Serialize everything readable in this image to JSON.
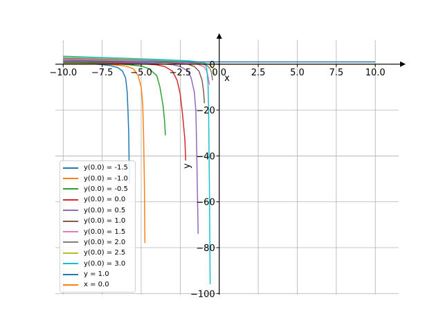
{
  "chart_data": {
    "type": "line",
    "xlabel": "x",
    "ylabel": "y",
    "xlim": [
      -10.5,
      11.5
    ],
    "ylim": [
      -100.5,
      10.5
    ],
    "grid": true,
    "legend_position": "lower-left",
    "x_ticks": [
      -10.0,
      -7.5,
      -5.0,
      -2.5,
      0.0,
      2.5,
      5.0,
      7.5,
      10.0
    ],
    "x_tick_labels": [
      "−10.0",
      "−7.5",
      "−5.0",
      "−2.5",
      "0.0",
      "2.5",
      "5.0",
      "7.5",
      "10.0"
    ],
    "y_ticks": [
      0,
      -20,
      -40,
      -60,
      -80,
      -100
    ],
    "y_tick_labels": [
      "0",
      "−20",
      "−40",
      "−60",
      "−80",
      "−100"
    ],
    "series": [
      {
        "name": "y(0.0) = -1.5",
        "color": "#1f77b4",
        "points": [
          [
            -10,
            0.42
          ],
          [
            -9,
            0.25
          ],
          [
            -8,
            0.05
          ],
          [
            -7.5,
            -0.2
          ],
          [
            -7,
            -0.6
          ],
          [
            -6.5,
            -1.5
          ],
          [
            -6.2,
            -3
          ],
          [
            -6.0,
            -6
          ],
          [
            -5.9,
            -12
          ],
          [
            -5.85,
            -20
          ],
          [
            -5.8,
            -30
          ],
          [
            -5.78,
            -40
          ],
          [
            -5.76,
            -52
          ]
        ]
      },
      {
        "name": "y(0.0) = -1.0",
        "color": "#ff7f0e",
        "points": [
          [
            -10,
            0.55
          ],
          [
            -9,
            0.4
          ],
          [
            -8,
            0.2
          ],
          [
            -7,
            -0.1
          ],
          [
            -6,
            -0.8
          ],
          [
            -5.5,
            -2
          ],
          [
            -5.2,
            -5
          ],
          [
            -5.0,
            -10
          ],
          [
            -4.9,
            -18
          ],
          [
            -4.85,
            -30
          ],
          [
            -4.8,
            -50
          ],
          [
            -4.78,
            -65
          ],
          [
            -4.76,
            -78
          ]
        ]
      },
      {
        "name": "y(0.0) = -0.5",
        "color": "#2ca02c",
        "points": [
          [
            -10,
            0.75
          ],
          [
            -9,
            0.62
          ],
          [
            -8,
            0.45
          ],
          [
            -7,
            0.25
          ],
          [
            -6,
            -0.1
          ],
          [
            -5,
            -0.8
          ],
          [
            -4.5,
            -2
          ],
          [
            -4.0,
            -5
          ],
          [
            -3.8,
            -10
          ],
          [
            -3.6,
            -18
          ],
          [
            -3.5,
            -25
          ],
          [
            -3.45,
            -31
          ]
        ]
      },
      {
        "name": "y(0.0) = 0.0",
        "color": "#d62728",
        "points": [
          [
            -10,
            0.95
          ],
          [
            -9,
            0.88
          ],
          [
            -8,
            0.75
          ],
          [
            -7,
            0.6
          ],
          [
            -6,
            0.42
          ],
          [
            -5,
            0.15
          ],
          [
            -4,
            -0.3
          ],
          [
            -3.5,
            -1
          ],
          [
            -3.0,
            -3
          ],
          [
            -2.7,
            -7
          ],
          [
            -2.5,
            -13
          ],
          [
            -2.35,
            -22
          ],
          [
            -2.2,
            -33
          ],
          [
            -2.15,
            -42
          ]
        ]
      },
      {
        "name": "y(0.0) = 0.5",
        "color": "#9467bd",
        "points": [
          [
            -10,
            1.3
          ],
          [
            -8,
            1.1
          ],
          [
            -6,
            0.8
          ],
          [
            -4,
            0.3
          ],
          [
            -3,
            -0.2
          ],
          [
            -2.5,
            -1
          ],
          [
            -2.0,
            -3
          ],
          [
            -1.8,
            -6
          ],
          [
            -1.6,
            -12
          ],
          [
            -1.5,
            -20
          ],
          [
            -1.45,
            -35
          ],
          [
            -1.4,
            -55
          ],
          [
            -1.35,
            -74
          ]
        ]
      },
      {
        "name": "y(0.0) = 1.0",
        "color": "#8c564b",
        "points": [
          [
            -10,
            1.8
          ],
          [
            -8,
            1.5
          ],
          [
            -6,
            1.2
          ],
          [
            -4,
            0.8
          ],
          [
            -3,
            0.5
          ],
          [
            -2,
            0
          ],
          [
            -1.6,
            -1
          ],
          [
            -1.3,
            -3
          ],
          [
            -1.1,
            -7
          ],
          [
            -1.0,
            -12
          ],
          [
            -0.95,
            -17
          ]
        ]
      },
      {
        "name": "y(0.0) = 1.5",
        "color": "#e377c2",
        "points": [
          [
            -10,
            2.2
          ],
          [
            -8,
            1.9
          ],
          [
            -6,
            1.6
          ],
          [
            -4,
            1.2
          ],
          [
            -2,
            0.5
          ],
          [
            -1.4,
            0
          ],
          [
            -1.0,
            -1
          ],
          [
            -0.8,
            -3
          ],
          [
            -0.7,
            -6
          ],
          [
            -0.62,
            -9
          ]
        ]
      },
      {
        "name": "y(0.0) = 2.0",
        "color": "#7f7f7f",
        "points": [
          [
            -10,
            2.6
          ],
          [
            -8,
            2.3
          ],
          [
            -6,
            2.0
          ],
          [
            -4,
            1.6
          ],
          [
            -2,
            0.9
          ],
          [
            -1.2,
            0.3
          ],
          [
            -0.8,
            -0.5
          ],
          [
            -0.6,
            -1.8
          ],
          [
            -0.5,
            -3.5
          ],
          [
            -0.45,
            -6
          ],
          [
            -0.42,
            -7
          ]
        ]
      },
      {
        "name": "y(0.0) = 2.5",
        "color": "#bcbd22",
        "points": [
          [
            -10,
            3.0
          ],
          [
            -8,
            2.7
          ],
          [
            -6,
            2.3
          ],
          [
            -4,
            1.9
          ],
          [
            -2,
            1.2
          ],
          [
            -1.0,
            0.6
          ],
          [
            -0.7,
            0
          ],
          [
            -0.5,
            -0.8
          ],
          [
            -0.4,
            -2
          ],
          [
            -0.35,
            -3.5
          ],
          [
            -0.32,
            -5
          ]
        ]
      },
      {
        "name": "y(0.0) = 3.0",
        "color": "#17becf",
        "points": [
          [
            -10,
            3.5
          ],
          [
            -8,
            3.0
          ],
          [
            -6,
            2.6
          ],
          [
            -4,
            2.1
          ],
          [
            -2,
            1.5
          ],
          [
            -1.2,
            0.9
          ],
          [
            -0.9,
            0.3
          ],
          [
            -0.8,
            -2
          ],
          [
            -0.72,
            -8
          ],
          [
            -0.68,
            -20
          ],
          [
            -0.65,
            -40
          ],
          [
            -0.62,
            -60
          ],
          [
            -0.6,
            -80
          ],
          [
            -0.58,
            -96
          ]
        ]
      },
      {
        "name": "y = 1.0",
        "color": "#1f77b4",
        "points": [
          [
            -10,
            1.0
          ],
          [
            10,
            1.0
          ]
        ]
      },
      {
        "name": "x = 0.0",
        "color": "#ff7f0e",
        "points": [
          [
            -10,
            0.0
          ],
          [
            10,
            0.0
          ]
        ]
      }
    ]
  }
}
